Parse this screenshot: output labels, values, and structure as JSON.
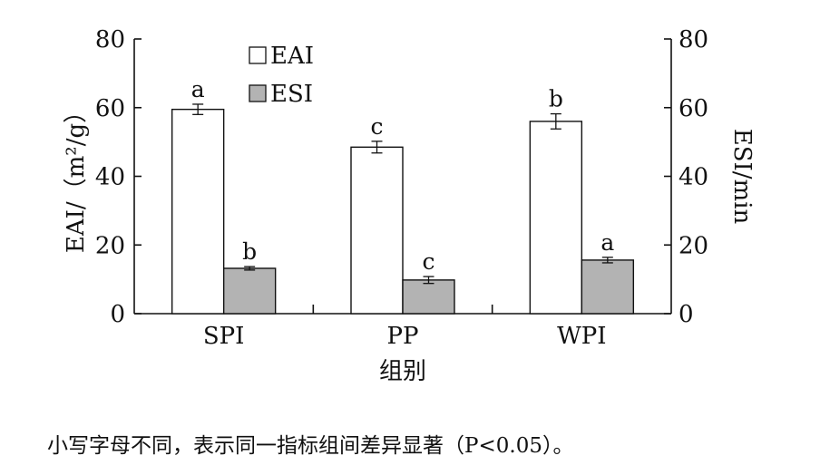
{
  "chart_data": {
    "type": "bar",
    "categories": [
      "SPI",
      "PP",
      "WPI"
    ],
    "series": [
      {
        "name": "EAI",
        "axis": "left",
        "color": "#ffffff",
        "values": [
          59.5,
          48.5,
          56.0
        ],
        "error": [
          1.5,
          1.7,
          2.2
        ],
        "significance": [
          "a",
          "c",
          "b"
        ]
      },
      {
        "name": "ESI",
        "axis": "right",
        "color": "#b3b3b3",
        "values": [
          13.2,
          9.8,
          15.6
        ],
        "error": [
          0.5,
          1.0,
          0.8
        ],
        "significance": [
          "b",
          "c",
          "a"
        ]
      }
    ],
    "xlabel": "组别",
    "ylabel": "EAI/（m²/g）",
    "y2label": "ESI/min",
    "ylim": [
      0,
      80
    ],
    "y2lim": [
      0,
      80
    ],
    "yticks": [
      "0",
      "20",
      "40",
      "60",
      "80"
    ],
    "y2ticks": [
      "0",
      "20",
      "40",
      "60",
      "80"
    ],
    "grid": false,
    "legend": "top-left"
  },
  "footnote": "小写字母不同，表示同一指标组间差异显著（P<0.05）。"
}
